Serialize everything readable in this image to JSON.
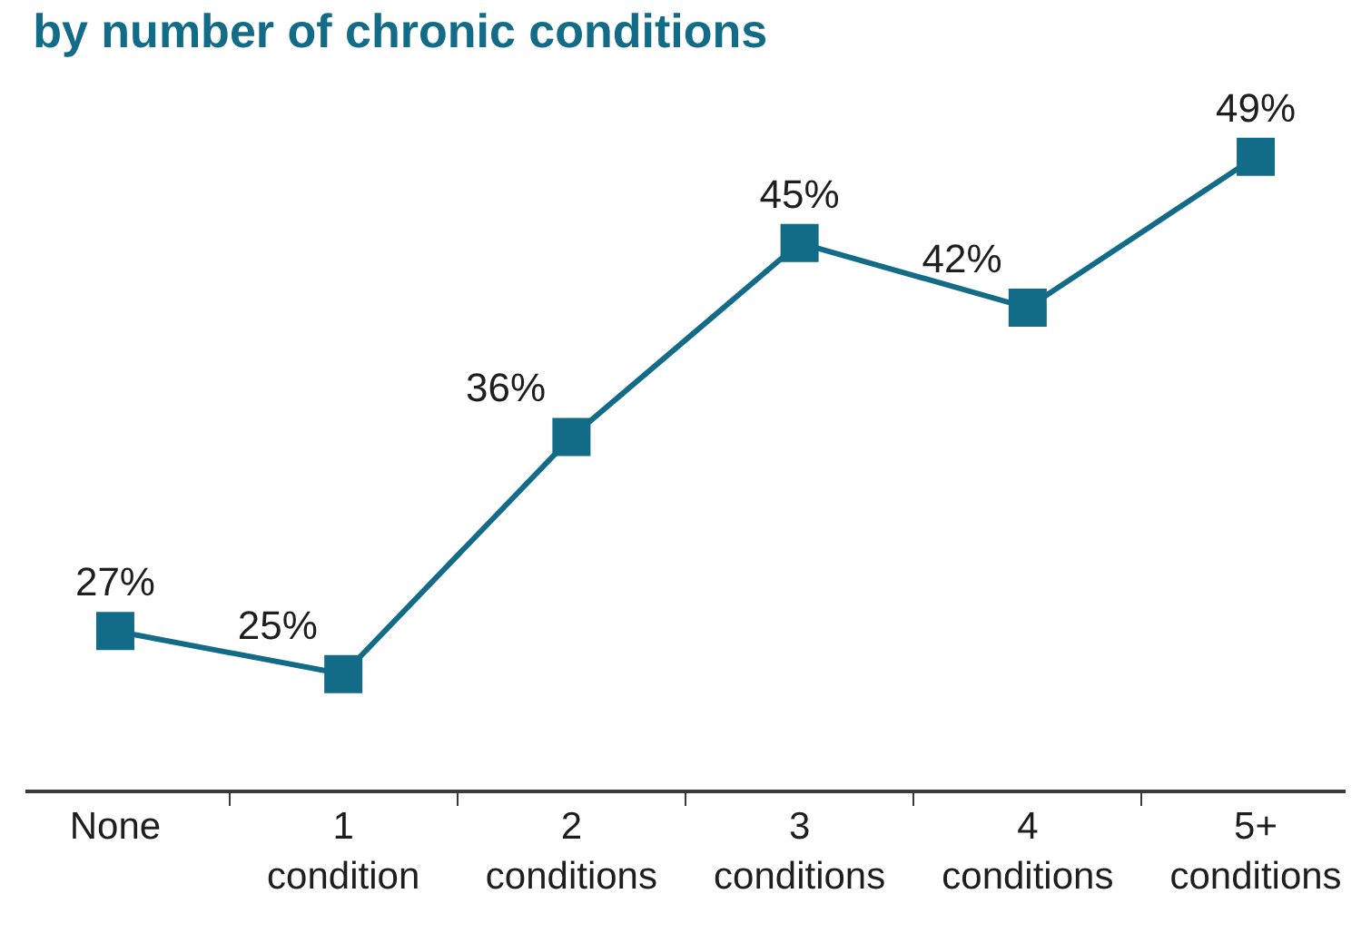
{
  "chart_data": {
    "type": "line",
    "title": "by number of chronic conditions",
    "categories": [
      "None",
      "1 condition",
      "2 conditions",
      "3 conditions",
      "4 conditions",
      "5+ conditions"
    ],
    "series": [
      {
        "color": "#126b87",
        "values": [
          27,
          25,
          36,
          45,
          42,
          49
        ],
        "value_labels": [
          "27%",
          "25%",
          "36%",
          "45%",
          "42%",
          "49%"
        ]
      }
    ],
    "marker": "square",
    "tick_labels": "x"
  }
}
